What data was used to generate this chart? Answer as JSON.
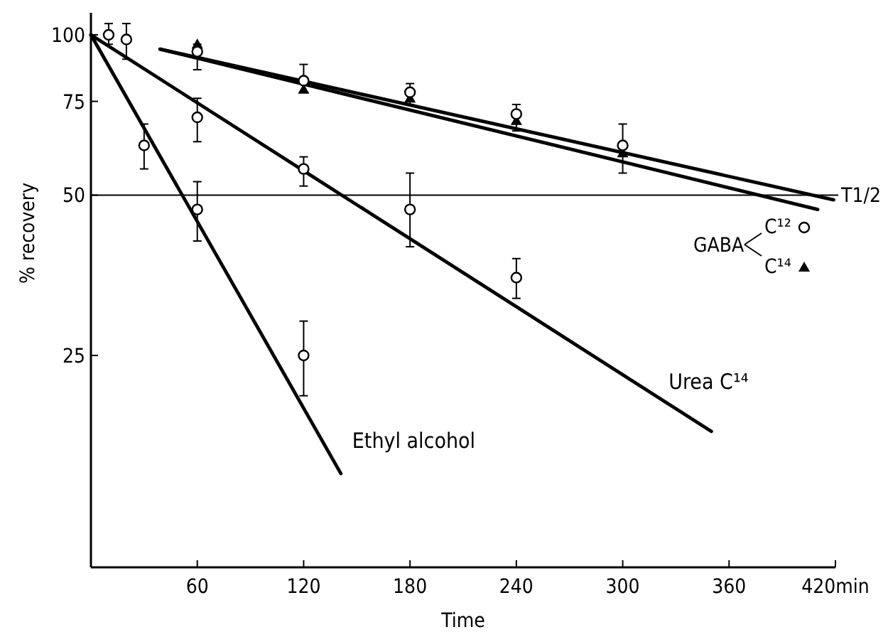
{
  "chart_data": {
    "type": "scatter",
    "xlabel": "Time",
    "ylabel": "% recovery",
    "log": "y",
    "grid": false,
    "legend": "right",
    "legend_title": "GABA",
    "marker": "circle",
    "xlim": [
      0,
      420
    ],
    "xticks": [
      {
        "value": 0,
        "label": null
      },
      60,
      120,
      180,
      240,
      300,
      360,
      {
        "value": 420,
        "label": "420min"
      }
    ],
    "ylim": [
      10,
      110
    ],
    "yticks": [
      25,
      50,
      75,
      100
    ],
    "ref_lines": [
      {
        "axis": "y",
        "value": 50,
        "label": "T1/2",
        "color": "#000000"
      }
    ],
    "series": [
      {
        "name": "C¹²",
        "color": "#000000",
        "x": [
          10,
          20,
          60,
          120,
          180,
          240,
          300
        ],
        "values": [
          100,
          98,
          93,
          82,
          78,
          71,
          62
        ],
        "errors": [
          [
            96,
            105
          ],
          [
            90,
            105
          ],
          [
            86,
            96
          ],
          [
            78,
            88
          ],
          [
            74,
            81
          ],
          [
            66,
            74
          ],
          [
            55,
            68
          ]
        ]
      },
      {
        "name": "C¹⁴",
        "type": "scatter",
        "color": "#000000",
        "marker": "triangle",
        "x": [
          60,
          120,
          180,
          240,
          300
        ],
        "values": [
          96,
          79,
          76,
          69,
          60
        ]
      },
      {
        "color": "#000000",
        "x": [
          30,
          60,
          120
        ],
        "values": [
          62,
          47,
          25
        ],
        "errors": [
          [
            56,
            68
          ],
          [
            41,
            53
          ],
          [
            21,
            29
          ]
        ]
      },
      {
        "color": "#000000",
        "x": [
          60,
          120,
          180,
          240
        ],
        "values": [
          70,
          56,
          47,
          35
        ],
        "errors": [
          [
            63,
            76
          ],
          [
            52,
            59
          ],
          [
            40,
            55
          ],
          [
            32,
            38
          ]
        ]
      },
      {
        "type": "line",
        "color": "#000000",
        "marker": "none",
        "x": [
          39,
          419
        ],
        "values": [
          94,
          49
        ]
      },
      {
        "type": "line",
        "color": "#000000",
        "marker": "none",
        "x": [
          39,
          410
        ],
        "values": [
          94,
          47
        ]
      },
      {
        "name": "Ethyl alcohol",
        "type": "line",
        "color": "#000000",
        "marker": "none",
        "x": [
          0,
          141
        ],
        "values": [
          100,
          15
        ]
      },
      {
        "name": "Urea C¹⁴",
        "type": "line",
        "color": "#000000",
        "marker": "none",
        "x": [
          0,
          350
        ],
        "values": [
          100,
          18
        ]
      }
    ]
  }
}
